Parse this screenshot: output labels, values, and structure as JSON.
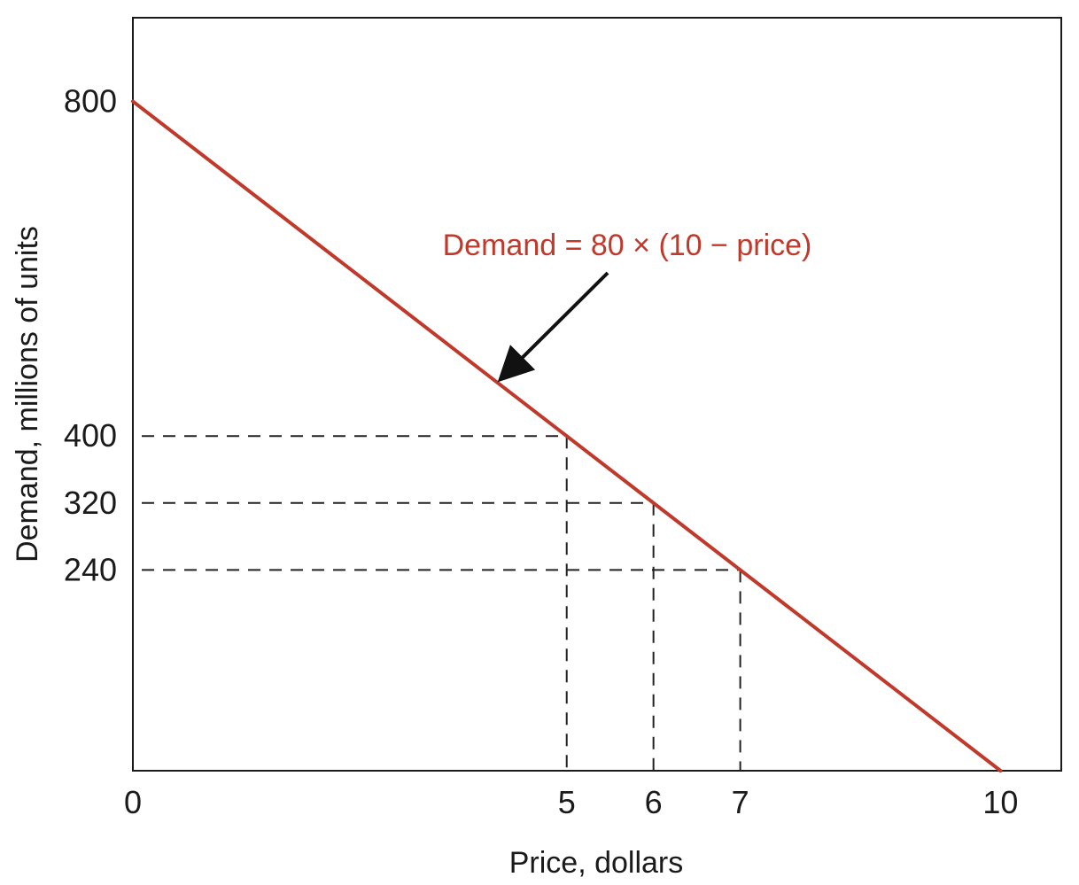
{
  "chart_data": {
    "type": "line",
    "title": "",
    "xlabel": "Price, dollars",
    "ylabel": "Demand, millions of units",
    "xlim": [
      0,
      10.7
    ],
    "ylim": [
      0,
      900
    ],
    "x_ticks": [
      0,
      5,
      6,
      7,
      10
    ],
    "x_tick_labels": [
      "0",
      "5",
      "6",
      "7",
      "10"
    ],
    "y_ticks": [
      240,
      320,
      400,
      800
    ],
    "y_tick_labels": [
      "240",
      "320",
      "400",
      "800"
    ],
    "grid": false,
    "legend": "none",
    "series": [
      {
        "x": [
          0,
          10
        ],
        "y": [
          800,
          0
        ],
        "color": "#c0392b"
      }
    ],
    "reference_points": [
      {
        "x": 5,
        "y": 400
      },
      {
        "x": 6,
        "y": 320
      },
      {
        "x": 7,
        "y": 240
      }
    ],
    "annotation": {
      "text": "Demand = 80 × (10 − price)",
      "color": "#c0392b",
      "arrow_target": {
        "x": 4.2,
        "y": 464
      }
    }
  }
}
